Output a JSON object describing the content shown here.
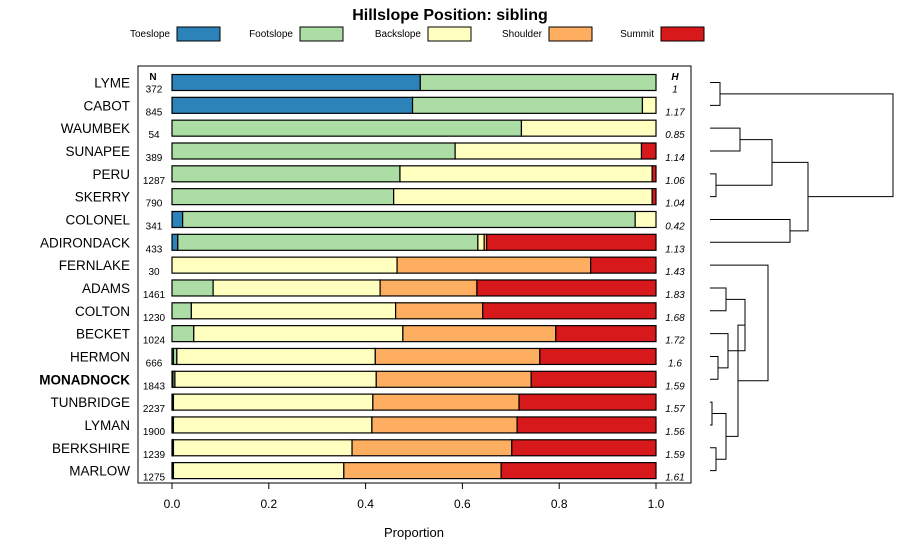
{
  "chart_data": {
    "type": "bar",
    "orientation": "horizontal",
    "stacked": true,
    "title": "Hillslope Position: sibling",
    "xlabel": "Proportion",
    "ylabel": "",
    "xlim": [
      0,
      1
    ],
    "x_ticks": [
      "0.0",
      "0.2",
      "0.4",
      "0.6",
      "0.8",
      "1.0"
    ],
    "n_header": "N",
    "h_header": "H",
    "legend_placement": "top",
    "categories": [
      "LYME",
      "CABOT",
      "WAUMBEK",
      "SUNAPEE",
      "PERU",
      "SKERRY",
      "COLONEL",
      "ADIRONDACK",
      "FERNLAKE",
      "ADAMS",
      "COLTON",
      "BECKET",
      "HERMON",
      "MONADNOCK",
      "TUNBRIDGE",
      "LYMAN",
      "BERKSHIRE",
      "MARLOW"
    ],
    "highlight": "MONADNOCK",
    "n": [
      "372",
      "845",
      "54",
      "389",
      "1287",
      "790",
      "341",
      "433",
      "30",
      "1461",
      "1230",
      "1024",
      "666",
      "1843",
      "2237",
      "1900",
      "1239",
      "1275"
    ],
    "h": [
      "1",
      "1.17",
      "0.85",
      "1.14",
      "1.06",
      "1.04",
      "0.42",
      "1.13",
      "1.43",
      "1.83",
      "1.68",
      "1.72",
      "1.6",
      "1.59",
      "1.57",
      "1.56",
      "1.59",
      "1.61"
    ],
    "series": [
      {
        "name": "Toeslope",
        "color": "#2b83ba",
        "values": [
          0.513,
          0.497,
          0.0,
          0.0,
          0.0,
          0.0,
          0.022,
          0.012,
          0.0,
          0.0,
          0.0,
          0.0,
          0.003,
          0.002,
          0.001,
          0.001,
          0.001,
          0.001
        ]
      },
      {
        "name": "Footslope",
        "color": "#abdda4",
        "values": [
          0.487,
          0.475,
          0.722,
          0.585,
          0.471,
          0.458,
          0.935,
          0.62,
          0.0,
          0.085,
          0.04,
          0.045,
          0.007,
          0.004,
          0.002,
          0.002,
          0.002,
          0.002
        ]
      },
      {
        "name": "Backslope",
        "color": "#ffffbf",
        "values": [
          0.0,
          0.028,
          0.278,
          0.385,
          0.521,
          0.534,
          0.043,
          0.013,
          0.465,
          0.345,
          0.422,
          0.432,
          0.41,
          0.416,
          0.412,
          0.41,
          0.369,
          0.352
        ]
      },
      {
        "name": "Shoulder",
        "color": "#fdae61",
        "values": [
          0.0,
          0.0,
          0.0,
          0.0,
          0.0,
          0.0,
          0.0,
          0.005,
          0.4,
          0.2,
          0.18,
          0.316,
          0.34,
          0.32,
          0.302,
          0.3,
          0.33,
          0.325
        ]
      },
      {
        "name": "Summit",
        "color": "#d7191c",
        "values": [
          0.0,
          0.0,
          0.0,
          0.03,
          0.008,
          0.008,
          0.0,
          0.35,
          0.135,
          0.37,
          0.358,
          0.207,
          0.24,
          0.258,
          0.283,
          0.287,
          0.298,
          0.32
        ]
      }
    ],
    "dendrogram": true
  }
}
